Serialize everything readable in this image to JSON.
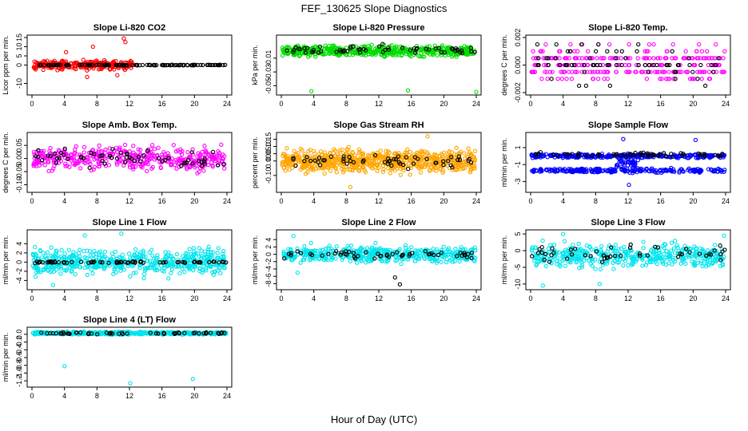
{
  "figure": {
    "title": "FEF_130625  Slope Diagnostics",
    "xlabel": "Hour of Day (UTC)"
  },
  "colors": {
    "red": "#ff0000",
    "green": "#00dd00",
    "magenta": "#ff00ff",
    "orange": "#ffa500",
    "blue": "#0000ff",
    "cyan": "#00e5ee",
    "black": "#000000"
  },
  "chart_data": [
    {
      "type": "scatter",
      "title": "Slope Li-820 CO2",
      "ylabel": "Licor ppm per min.",
      "xlim": [
        0,
        24
      ],
      "ylim": [
        -15,
        15
      ],
      "xticks": [
        "0",
        "4",
        "8",
        "12",
        "16",
        "20",
        "24"
      ],
      "yticks": [
        "-10",
        "0",
        "5",
        "10",
        "15"
      ],
      "ytick_values": [
        -10,
        0,
        5,
        10,
        15
      ],
      "series": [
        {
          "color": "red",
          "pattern": "band",
          "center": 0,
          "spread": 3.5,
          "count": 260,
          "x_range": [
            0.2,
            12.5
          ],
          "outliers": [
            [
              11.3,
              14.5
            ],
            [
              11.5,
              12.5
            ],
            [
              6.8,
              -6.5
            ],
            [
              10.5,
              -5.5
            ],
            [
              7.5,
              10
            ],
            [
              4.2,
              7
            ]
          ]
        },
        {
          "color": "black",
          "pattern": "line",
          "center": 0,
          "spread": 0.2,
          "count": 120
        }
      ]
    },
    {
      "type": "scatter",
      "title": "Slope Li-820 Pressure",
      "ylabel": "kPa per min.",
      "xlim": [
        0,
        24
      ],
      "ylim": [
        -0.06,
        0.02
      ],
      "xticks": [
        "0",
        "4",
        "8",
        "12",
        "16",
        "20",
        "24"
      ],
      "yticks": [
        "-0.05",
        "-0.03",
        "-0.01"
      ],
      "ytick_values": [
        -0.05,
        -0.03,
        -0.01
      ],
      "series": [
        {
          "color": "green",
          "pattern": "band",
          "center": 0,
          "spread": 0.011,
          "count": 500,
          "outliers": [
            [
              3.7,
              -0.058
            ],
            [
              15.6,
              -0.057
            ],
            [
              24.0,
              -0.059
            ]
          ]
        },
        {
          "color": "black",
          "pattern": "band",
          "center": 0.002,
          "spread": 0.01,
          "count": 60
        }
      ]
    },
    {
      "type": "scatter",
      "title": "Slope Li-820 Temp.",
      "ylabel": "degrees C per min.",
      "xlim": [
        0,
        24
      ],
      "ylim": [
        -0.002,
        0.002
      ],
      "xticks": [
        "0",
        "4",
        "8",
        "12",
        "16",
        "20",
        "24"
      ],
      "yticks": [
        "-0.002",
        "0.000",
        "0.002"
      ],
      "ytick_values": [
        -0.002,
        0,
        0.002
      ],
      "series": [
        {
          "color": "magenta",
          "pattern": "levels",
          "levels": [
            0.0005,
            0,
            -0.0005,
            -0.001,
            0.001,
            0.0015
          ],
          "weights": [
            5,
            4,
            5,
            2,
            2,
            1
          ],
          "count": 280
        },
        {
          "color": "black",
          "pattern": "levels",
          "levels": [
            0,
            0.0005,
            -0.0005,
            -0.001,
            0.001,
            0.0015,
            -0.0015
          ],
          "weights": [
            8,
            2,
            2,
            1,
            1,
            1,
            1
          ],
          "count": 70
        }
      ]
    },
    {
      "type": "scatter",
      "title": "Slope Amb. Box Temp.",
      "ylabel": "degrees C per min.",
      "xlim": [
        0,
        24
      ],
      "ylim": [
        -0.12,
        0.09
      ],
      "xticks": [
        "0",
        "4",
        "8",
        "12",
        "16",
        "20",
        "24"
      ],
      "yticks": [
        "-0.10",
        "-0.05",
        "0.00",
        "0.05"
      ],
      "ytick_values": [
        -0.1,
        -0.05,
        0,
        0.05
      ],
      "series": [
        {
          "color": "magenta",
          "pattern": "band",
          "center": 0,
          "spread": 0.065,
          "count": 420
        },
        {
          "color": "black",
          "pattern": "band",
          "center": 0,
          "spread": 0.05,
          "count": 60
        }
      ]
    },
    {
      "type": "scatter",
      "title": "Slope Gas Stream RH",
      "ylabel": "percent per min.",
      "xlim": [
        0,
        24
      ],
      "ylim": [
        -0.2,
        0.18
      ],
      "xticks": [
        "0",
        "4",
        "8",
        "12",
        "16",
        "20",
        "24"
      ],
      "yticks": [
        "-0.10",
        "0.00",
        "0.05",
        "0.10",
        "0.15"
      ],
      "ytick_values": [
        -0.1,
        0,
        0.05,
        0.1,
        0.15
      ],
      "series": [
        {
          "color": "orange",
          "pattern": "band",
          "center": 0,
          "spread": 0.11,
          "count": 700,
          "outliers": [
            [
              8.5,
              -0.18
            ],
            [
              18.0,
              0.17
            ]
          ]
        },
        {
          "color": "black",
          "pattern": "band",
          "center": 0,
          "spread": 0.07,
          "count": 55
        }
      ]
    },
    {
      "type": "scatter",
      "title": "Slope Sample Flow",
      "ylabel": "ml/min per min.",
      "xlim": [
        0,
        24
      ],
      "ylim": [
        -4,
        2.5
      ],
      "xticks": [
        "0",
        "4",
        "8",
        "12",
        "16",
        "20",
        "24"
      ],
      "yticks": [
        "-3",
        "-1",
        "1"
      ],
      "ytick_values": [
        -3,
        -1,
        1
      ],
      "series": [
        {
          "color": "blue",
          "pattern": "line",
          "center": 0,
          "spread": 0.35,
          "count": 300
        },
        {
          "color": "blue",
          "pattern": "line",
          "center": -1.7,
          "spread": 0.35,
          "count": 250
        },
        {
          "color": "blue",
          "pattern": "band",
          "center": -0.8,
          "spread": 1.2,
          "count": 40,
          "x_range": [
            10.5,
            13.5
          ],
          "outliers": [
            [
              11.4,
              2.0
            ],
            [
              12.1,
              -3.4
            ],
            [
              20.3,
              1.9
            ]
          ]
        },
        {
          "color": "black",
          "pattern": "line",
          "center": 0.2,
          "spread": 0.35,
          "count": 55
        }
      ]
    },
    {
      "type": "scatter",
      "title": "Slope Line 1 Flow",
      "ylabel": "ml/min per min.",
      "xlim": [
        0,
        24
      ],
      "ylim": [
        -5.5,
        6.5
      ],
      "xticks": [
        "0",
        "4",
        "8",
        "12",
        "16",
        "20",
        "24"
      ],
      "yticks": [
        "-4",
        "-2",
        "0",
        "2",
        "4"
      ],
      "ytick_values": [
        -4,
        -2,
        0,
        2,
        4
      ],
      "series": [
        {
          "color": "cyan",
          "pattern": "band",
          "center": 0,
          "spread": 3.8,
          "count": 520,
          "outliers": [
            [
              11.0,
              6.2
            ],
            [
              2.6,
              -5.0
            ],
            [
              6.5,
              5.8
            ]
          ]
        },
        {
          "color": "black",
          "pattern": "line",
          "center": 0,
          "spread": 0.3,
          "count": 70
        }
      ]
    },
    {
      "type": "scatter",
      "title": "Slope Line 2 Flow",
      "ylabel": "ml/min per min.",
      "xlim": [
        0,
        24
      ],
      "ylim": [
        -9,
        6
      ],
      "xticks": [
        "0",
        "4",
        "8",
        "12",
        "16",
        "20",
        "24"
      ],
      "yticks": [
        "-8",
        "-6",
        "-4",
        "-2",
        "0",
        "2",
        "4"
      ],
      "ytick_values": [
        -8,
        -6,
        -4,
        -2,
        0,
        2,
        4
      ],
      "series": [
        {
          "color": "cyan",
          "pattern": "band",
          "center": 0,
          "spread": 3.2,
          "count": 470,
          "outliers": [
            [
              1.5,
              5.0
            ],
            [
              2.0,
              -5.0
            ]
          ]
        },
        {
          "color": "black",
          "pattern": "band",
          "center": 0,
          "spread": 1.5,
          "count": 55,
          "outliers": [
            [
              14.0,
              -6.3
            ],
            [
              14.6,
              -8.2
            ]
          ]
        }
      ]
    },
    {
      "type": "scatter",
      "title": "Slope Line 3 Flow",
      "ylabel": "ml/min per min.",
      "xlim": [
        0,
        24
      ],
      "ylim": [
        -11,
        5.5
      ],
      "xticks": [
        "0",
        "4",
        "8",
        "12",
        "16",
        "20",
        "24"
      ],
      "yticks": [
        "-10",
        "-5",
        "0",
        "5"
      ],
      "ytick_values": [
        -10,
        -5,
        0,
        5
      ],
      "series": [
        {
          "color": "cyan",
          "pattern": "band",
          "center": -1.5,
          "spread": 5,
          "count": 440,
          "outliers": [
            [
              4.0,
              5.0
            ],
            [
              23.8,
              4.5
            ],
            [
              1.5,
              -10.5
            ],
            [
              8.5,
              -10.0
            ]
          ]
        },
        {
          "color": "black",
          "pattern": "band",
          "center": -0.8,
          "spread": 3.5,
          "count": 50
        }
      ]
    },
    {
      "type": "scatter",
      "title": "Slope Line 4 (LT) Flow",
      "ylabel": "ml/min per min.",
      "xlim": [
        0,
        24
      ],
      "ylim": [
        -1.3,
        0.12
      ],
      "xticks": [
        "0",
        "4",
        "8",
        "12",
        "16",
        "20",
        "24"
      ],
      "yticks": [
        "-1.2",
        "-1.0",
        "-0.8",
        "-0.6",
        "-0.4",
        "-0.2",
        "0.0"
      ],
      "ytick_values": [
        -1.2,
        -1.0,
        -0.8,
        -0.6,
        -0.4,
        -0.2,
        0
      ],
      "series": [
        {
          "color": "cyan",
          "pattern": "line",
          "center": 0.03,
          "spread": 0.05,
          "count": 500,
          "outliers": [
            [
              4.0,
              -0.82
            ],
            [
              12.1,
              -1.26
            ],
            [
              19.8,
              -1.15
            ]
          ]
        },
        {
          "color": "black",
          "pattern": "line",
          "center": 0.03,
          "spread": 0.04,
          "count": 55
        }
      ]
    }
  ]
}
